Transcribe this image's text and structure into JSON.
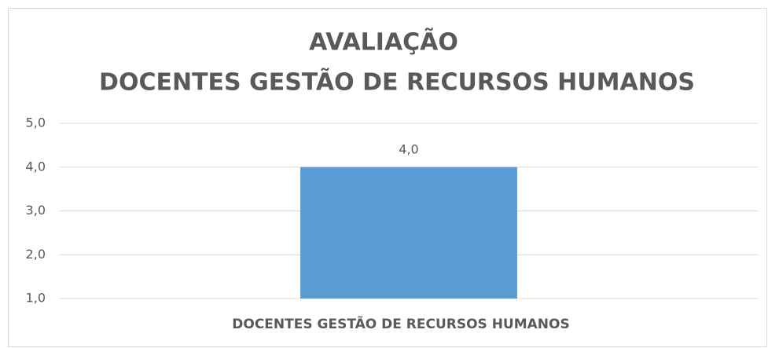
{
  "chart_data": {
    "type": "bar",
    "title": [
      "AVALIAÇÃO",
      "DOCENTES GESTÃO DE RECURSOS HUMANOS"
    ],
    "categories": [
      "DOCENTES GESTÃO DE RECURSOS HUMANOS"
    ],
    "values": [
      4
    ],
    "value_labels": [
      "4,0"
    ],
    "color": "#5b9bd5",
    "ylim": [
      1,
      5
    ],
    "yticks": [
      {
        "value": 1,
        "label": "1,0"
      },
      {
        "value": 2,
        "label": "2,0"
      },
      {
        "value": 3,
        "label": "3,0"
      },
      {
        "value": 4,
        "label": "4,0"
      },
      {
        "value": 5,
        "label": "5,0"
      }
    ],
    "grid": true
  }
}
